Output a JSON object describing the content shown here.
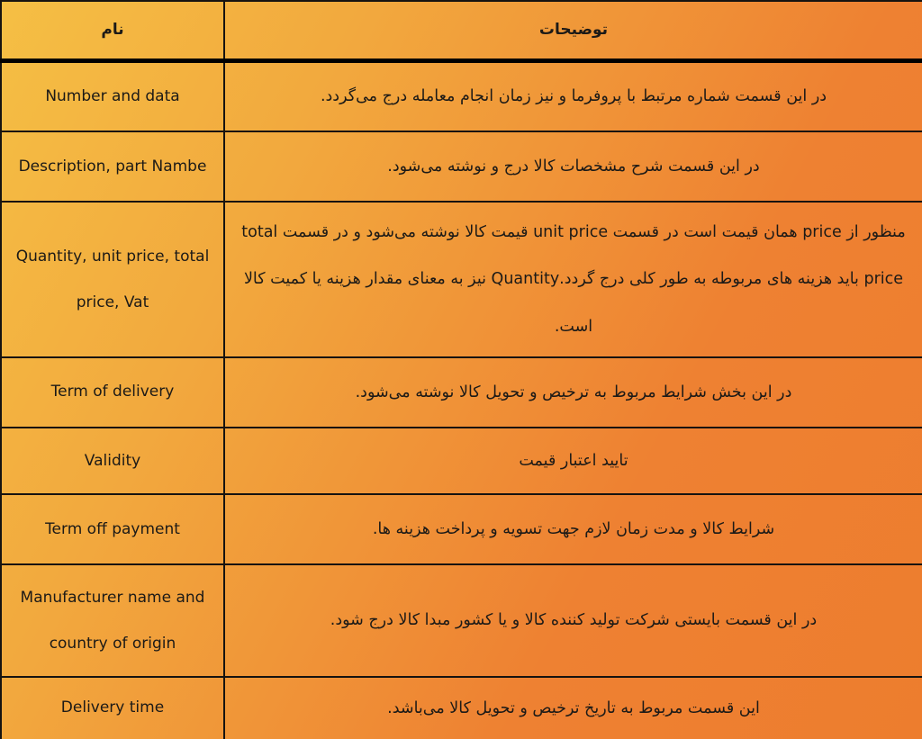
{
  "table": {
    "headers": {
      "name": "نام",
      "description": "توضیحات"
    },
    "rows": [
      {
        "name": "Number and data",
        "description": "در این قسمت شماره مرتبط با پروفرما و نیز زمان انجام معامله درج می‌گردد."
      },
      {
        "name": "Description, part Nambe",
        "description": "در این قسمت شرح مشخصات کالا درج و نوشته می‌شود."
      },
      {
        "name": "Quantity, unit price, total price, Vat",
        "description": "منظور از price همان قیمت است در قسمت unit price قیمت کالا نوشته می‌شود و در قسمت total price باید هزینه های مربوطه به طور کلی درج گردد.Quantity نیز به معنای مقدار  هزینه یا کمیت کالا است."
      },
      {
        "name": "Term of delivery",
        "description": "در این بخش شرایط مربوط به ترخیص و تحویل کالا نوشته می‌شود."
      },
      {
        "name": "Validity",
        "description": "تایید اعتبار قیمت"
      },
      {
        "name": "Term off payment",
        "description": "شرایط کالا و مدت زمان لازم جهت تسویه و پرداخت هزینه ها."
      },
      {
        "name": "Manufacturer name and country of origin",
        "description": "در این قسمت بایستی شرکت تولید کننده کالا و یا کشور مبدا کالا درج شود."
      },
      {
        "name": "Delivery time",
        "description": "این قسمت مربوط به تاریخ ترخیص و تحویل کالا می‌باشد."
      }
    ],
    "colors": {
      "gradient_start": "#f5bf44",
      "gradient_end": "#ed7d2e",
      "border": "#161310",
      "header_divider": "#000000",
      "text": "#1c1a17"
    }
  }
}
